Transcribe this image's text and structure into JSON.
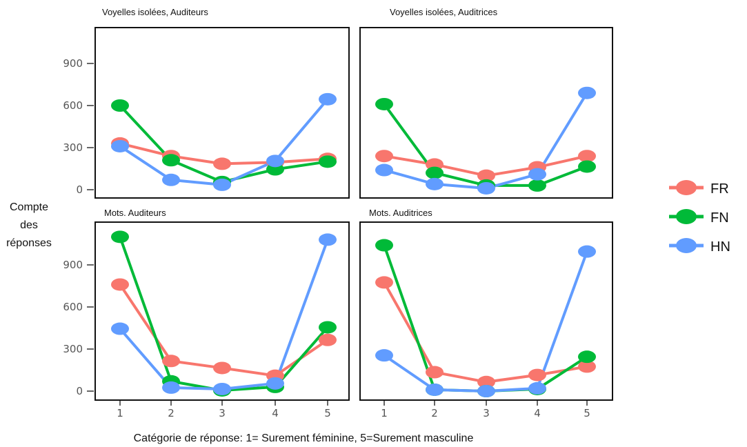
{
  "chart_data": {
    "type": "line",
    "ylabel_lines": [
      "Compte",
      "des",
      "réponses"
    ],
    "xlabel": "Catégorie de réponse: 1= Surement féminine, 5=Surement masculine",
    "categories": [
      1,
      2,
      3,
      4,
      5
    ],
    "x_ticks": [
      "1",
      "2",
      "3",
      "4",
      "5"
    ],
    "y_ticks": [
      "0",
      "300",
      "600",
      "900"
    ],
    "ylim": [
      -40,
      1130
    ],
    "grid": false,
    "legend_position": "right",
    "legend": [
      {
        "name": "FR",
        "color": "#f8766d"
      },
      {
        "name": "FN",
        "color": "#00ba38"
      },
      {
        "name": "HN",
        "color": "#619cff"
      }
    ],
    "panels": [
      {
        "title": "Voyelles isolées, Auditeurs",
        "series": [
          {
            "name": "FR",
            "values": [
              330,
              240,
              185,
              195,
              220
            ]
          },
          {
            "name": "FN",
            "values": [
              600,
              210,
              55,
              145,
              200
            ]
          },
          {
            "name": "HN",
            "values": [
              310,
              70,
              35,
              205,
              645
            ]
          }
        ]
      },
      {
        "title": "Voyelles isolées, Auditrices",
        "series": [
          {
            "name": "FR",
            "values": [
              240,
              180,
              100,
              160,
              240
            ]
          },
          {
            "name": "FN",
            "values": [
              610,
              120,
              30,
              30,
              165
            ]
          },
          {
            "name": "HN",
            "values": [
              140,
              40,
              10,
              110,
              690
            ]
          }
        ]
      },
      {
        "title": "Mots. Auditeurs",
        "series": [
          {
            "name": "FR",
            "values": [
              760,
              215,
              165,
              110,
              365
            ]
          },
          {
            "name": "FN",
            "values": [
              1100,
              70,
              5,
              30,
              455
            ]
          },
          {
            "name": "HN",
            "values": [
              445,
              25,
              15,
              55,
              1080
            ]
          }
        ]
      },
      {
        "title": "Mots. Auditrices",
        "series": [
          {
            "name": "FR",
            "values": [
              775,
              135,
              65,
              115,
              175
            ]
          },
          {
            "name": "FN",
            "values": [
              1040,
              10,
              0,
              15,
              245
            ]
          },
          {
            "name": "HN",
            "values": [
              255,
              10,
              0,
              20,
              995
            ]
          }
        ]
      }
    ]
  }
}
